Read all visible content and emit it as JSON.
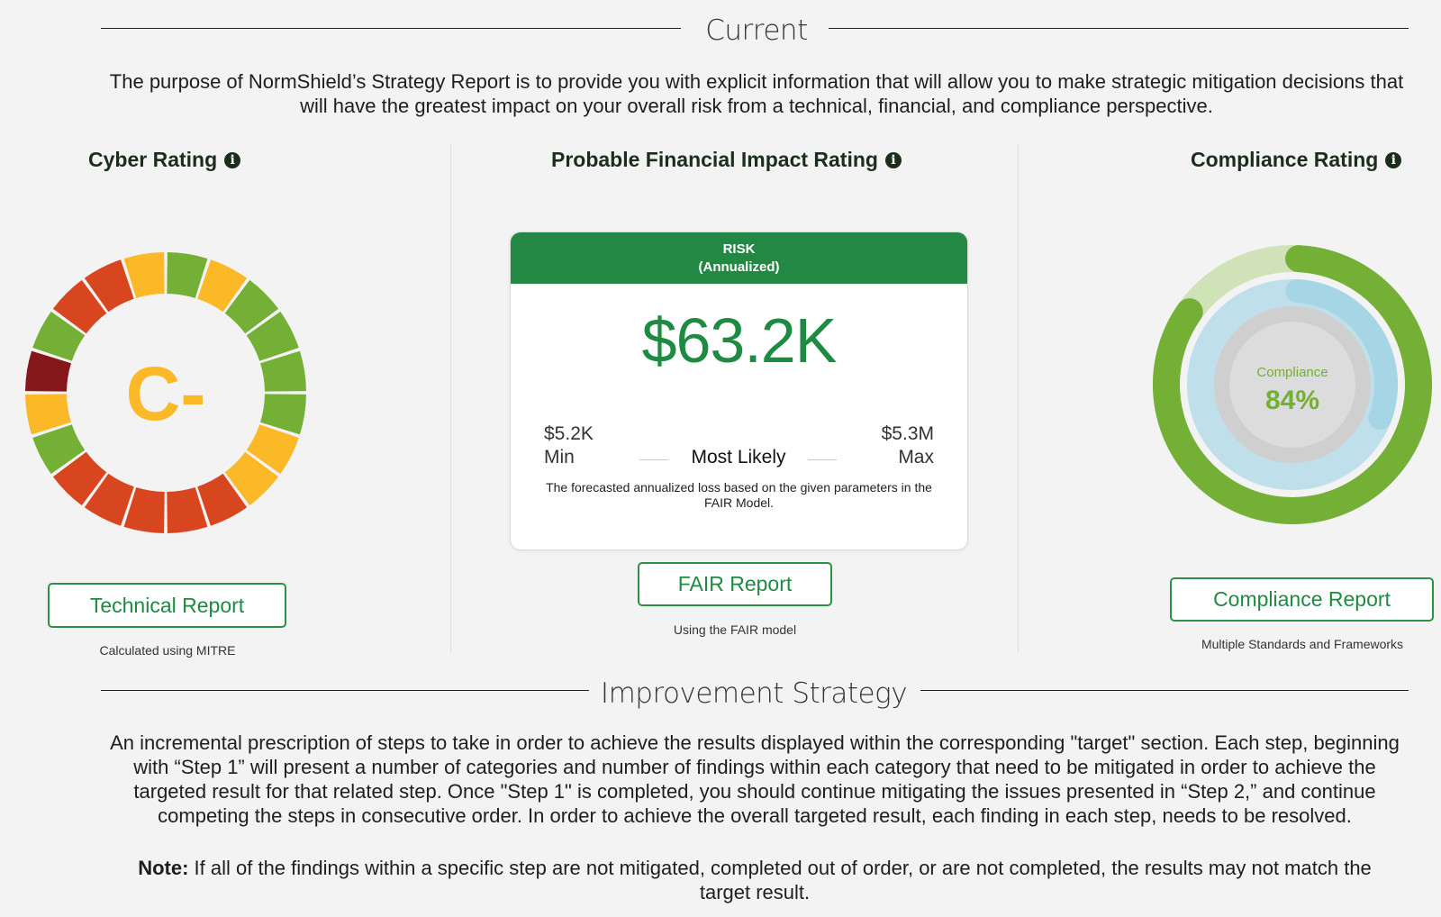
{
  "current": {
    "title": "Current",
    "description": "The purpose of NormShield’s Strategy Report is to provide you with explicit information that will allow you to make strategic mitigation decisions that will have the greatest impact on your overall risk from a technical, financial, and compliance perspective."
  },
  "cyber": {
    "title": "Cyber Rating",
    "grade": "C-",
    "button": "Technical Report",
    "caption": "Calculated using MITRE",
    "segments": [
      "green",
      "orange",
      "green",
      "green",
      "green",
      "green",
      "orange",
      "orange",
      "red",
      "red",
      "red",
      "red",
      "red",
      "green",
      "orange",
      "darkred",
      "green",
      "red",
      "red",
      "orange"
    ]
  },
  "financial": {
    "title": "Probable Financial Impact Rating",
    "card_title": "RISK",
    "card_subtitle": "(Annualized)",
    "value": "$63.2K",
    "min_value": "$5.2K",
    "min_label": "Min",
    "most_likely_label": "Most Likely",
    "max_value": "$5.3M",
    "max_label": "Max",
    "note": "The forecasted annualized loss based on the given parameters in the FAIR Model.",
    "button": "FAIR Report",
    "caption": "Using the FAIR model"
  },
  "compliance": {
    "title": "Compliance Rating",
    "label": "Compliance",
    "value": "84%",
    "percent": 0.84,
    "button": "Compliance Report",
    "caption": "Multiple Standards and Frameworks"
  },
  "improvement": {
    "title": "Improvement Strategy",
    "description": "An incremental prescription of steps to take in order to achieve the results displayed within the corresponding \"target\" section. Each step, beginning with “Step 1” will present a number of categories and number of findings within each category that need to be mitigated in order to achieve the targeted result for that related step. Once \"Step 1\" is completed, you should continue mitigating the issues presented in “Step 2,” and continue competing the steps in consecutive order. In order to achieve the overall targeted result, each finding in each step, needs to be resolved.",
    "note_label": "Note:",
    "note_text": " If all of the findings within a specific step are not mitigated, completed out of order, or are not completed, the results may not match the target result."
  },
  "colors": {
    "green": "#73b035",
    "orange": "#fbb928",
    "red": "#d84620",
    "darkred": "#851619",
    "darkgreen": "#25894a",
    "brand": "#228843"
  }
}
